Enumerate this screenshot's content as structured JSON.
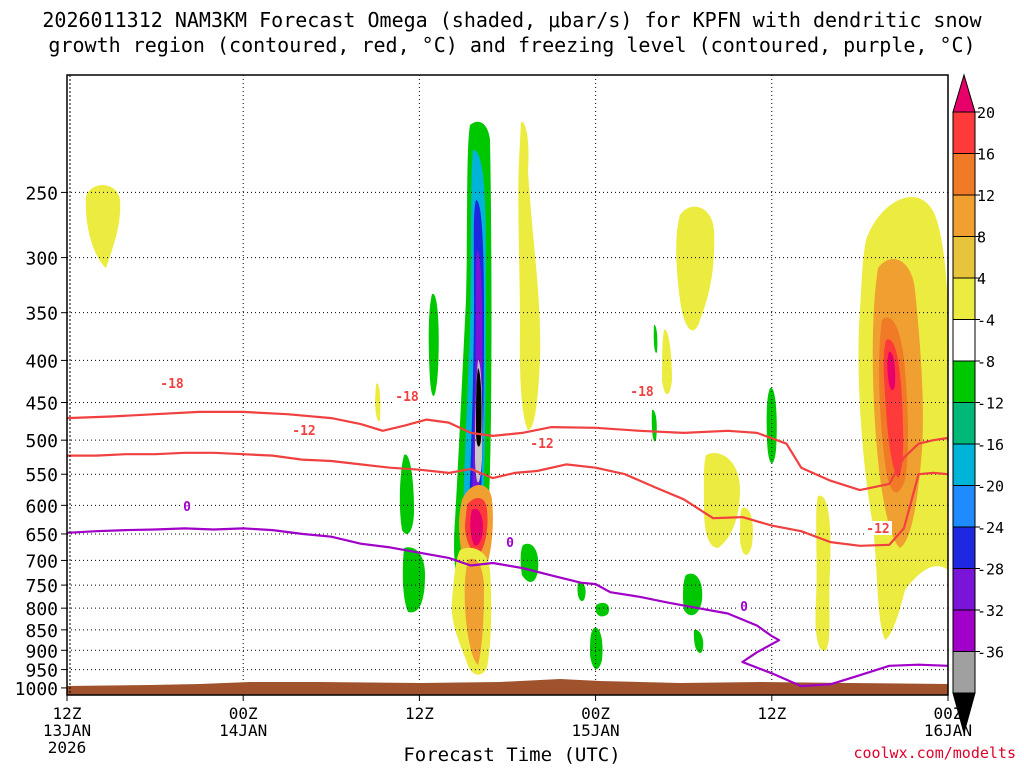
{
  "chart_data": {
    "type": "heatmap",
    "title_line1": "2026011312 NAM3KM Forecast Omega (shaded, μbar/s) for KPFN with dendritic snow",
    "title_line2": "growth region (contoured, red, °C) and freezing level (contoured, purple, °C)",
    "xlabel": "Forecast Time (UTC)",
    "credit": "coolwx.com/modelts",
    "x_range_hours": [
      0,
      60
    ],
    "y_range_mb": [
      1020,
      180
    ],
    "y_ticks": [
      "250",
      "300",
      "350",
      "400",
      "450",
      "500",
      "550",
      "600",
      "650",
      "700",
      "750",
      "800",
      "850",
      "900",
      "950",
      "1000"
    ],
    "y_tick_values": [
      250,
      300,
      350,
      400,
      450,
      500,
      550,
      600,
      650,
      700,
      750,
      800,
      850,
      900,
      950,
      1000
    ],
    "x_ticks": [
      {
        "hour": 0,
        "line1": "12Z",
        "line2": "13JAN",
        "line3": "2026"
      },
      {
        "hour": 12,
        "line1": "00Z",
        "line2": "14JAN",
        "line3": ""
      },
      {
        "hour": 24,
        "line1": "12Z",
        "line2": "",
        "line3": ""
      },
      {
        "hour": 36,
        "line1": "00Z",
        "line2": "15JAN",
        "line3": ""
      },
      {
        "hour": 48,
        "line1": "12Z",
        "line2": "",
        "line3": ""
      },
      {
        "hour": 60,
        "line1": "00Z",
        "line2": "16JAN",
        "line3": ""
      }
    ],
    "colorbar_labels": [
      "20",
      "16",
      "12",
      "8",
      "4",
      "-4",
      "-8",
      "-12",
      "-16",
      "-20",
      "-24",
      "-28",
      "-32",
      "-36"
    ],
    "colorbar_colors": [
      "#e8006a",
      "#ff3a3a",
      "#f07a25",
      "#f0a030",
      "#e8c43c",
      "#ecec40",
      "#ffffff",
      "#00c800",
      "#00b878",
      "#00b4d8",
      "#1e8cff",
      "#1e28e0",
      "#7a14d8",
      "#a000c8",
      "#a0a0a0",
      "#000000"
    ],
    "contour_labels": {
      "m18": "-18",
      "m12": "-12",
      "zero": "0"
    },
    "series": [
      {
        "name": "-18C isotherm",
        "color": "#f04040",
        "x": [
          0,
          3,
          6,
          9,
          12,
          15,
          18,
          20,
          21.5,
          23,
          24.5,
          26,
          27.5,
          29,
          31,
          33,
          36,
          39,
          42,
          45,
          47,
          49,
          50,
          52,
          54,
          56,
          57,
          58,
          59,
          60
        ],
        "y": [
          470,
          468,
          465,
          462,
          462,
          465,
          470,
          478,
          487,
          480,
          472,
          476,
          490,
          494,
          490,
          482,
          483,
          487,
          490,
          487,
          490,
          505,
          540,
          560,
          575,
          565,
          525,
          505,
          500,
          497
        ]
      },
      {
        "name": "-12C isotherm",
        "color": "#f04040",
        "x": [
          0,
          2,
          4,
          6,
          8,
          10,
          12,
          14,
          16,
          18,
          20,
          22,
          24,
          26,
          27.5,
          29,
          30.5,
          32,
          34,
          36,
          38,
          40,
          42,
          44,
          46,
          48,
          50,
          52,
          54,
          56,
          57,
          58,
          59,
          60
        ],
        "y": [
          522,
          522,
          520,
          520,
          518,
          518,
          520,
          522,
          528,
          530,
          535,
          540,
          543,
          548,
          542,
          556,
          548,
          545,
          535,
          540,
          550,
          570,
          590,
          622,
          620,
          635,
          645,
          665,
          672,
          670,
          640,
          550,
          548,
          550
        ]
      },
      {
        "name": "0C freezing level",
        "color": "#a000c8",
        "x": [
          0,
          2,
          4,
          6,
          8,
          10,
          12,
          14,
          16,
          18,
          20,
          22,
          24,
          26,
          27.5,
          29,
          31,
          33,
          35,
          36,
          37,
          39,
          41,
          43,
          45,
          47,
          48,
          48.5,
          47,
          46,
          48,
          50,
          52,
          54,
          56,
          58,
          60
        ],
        "y": [
          648,
          645,
          643,
          642,
          640,
          642,
          640,
          643,
          650,
          655,
          668,
          675,
          685,
          695,
          710,
          705,
          715,
          730,
          745,
          748,
          765,
          775,
          788,
          800,
          812,
          840,
          865,
          875,
          905,
          930,
          960,
          995,
          990,
          965,
          940,
          937,
          940
        ]
      }
    ]
  }
}
